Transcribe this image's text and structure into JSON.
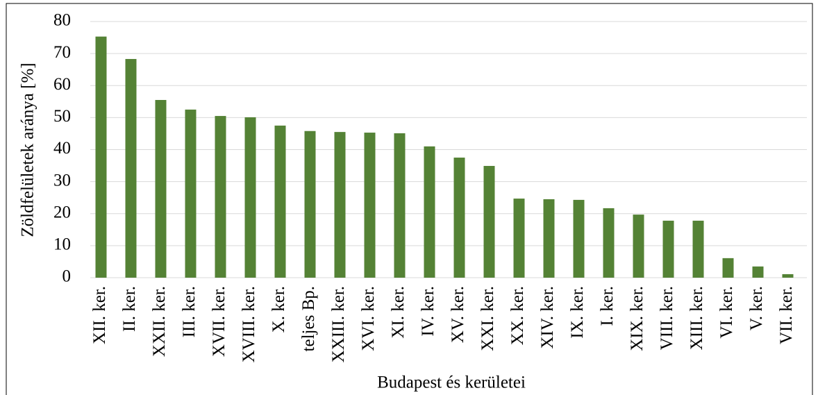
{
  "chart_data": {
    "type": "bar",
    "x_label": "Budapest és kerületei",
    "y_label": "Zöldfelületek aránya [%]",
    "categories": [
      "XII. ker.",
      "II. ker.",
      "XXII. ker.",
      "III. ker.",
      "XVII. ker.",
      "XVIII. ker.",
      "X. ker.",
      "teljes Bp.",
      "XXIII. ker.",
      "XVI. ker.",
      "XI. ker.",
      "IV. ker.",
      "XV. ker.",
      "XXI. ker.",
      "XX. ker.",
      "XIV. ker.",
      "IX. ker.",
      "I. ker.",
      "XIX. ker.",
      "VIII. ker.",
      "XIII. ker.",
      "VI. ker.",
      "V. ker.",
      "VII. ker."
    ],
    "values": [
      75.3,
      68.3,
      55.5,
      52.5,
      50.5,
      50.1,
      47.5,
      45.8,
      45.5,
      45.3,
      45.1,
      41.0,
      37.5,
      34.9,
      24.7,
      24.5,
      24.3,
      21.7,
      19.7,
      17.8,
      17.8,
      6.1,
      3.5,
      1.1
    ],
    "color": "#548235",
    "ylim": [
      0,
      80
    ],
    "yticks": [
      0,
      10,
      20,
      30,
      40,
      50,
      60,
      70,
      80
    ],
    "grid": true
  }
}
